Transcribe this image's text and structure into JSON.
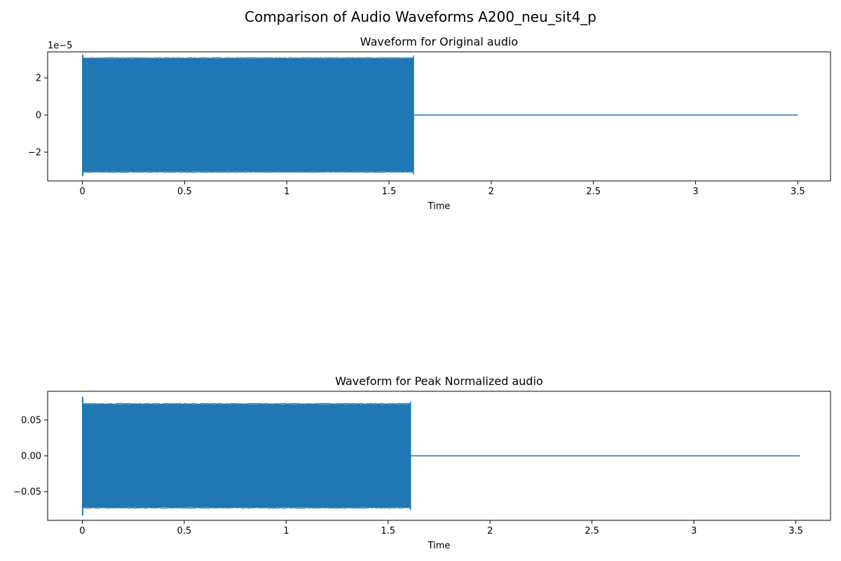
{
  "suptitle": "Comparison of Audio Waveforms A200_neu_sit4_p",
  "chart_data": [
    {
      "type": "line",
      "title": "Waveform for Original audio",
      "xlabel": "Time",
      "ylabel": "",
      "offset_text": "1e−5",
      "xlim": [
        -0.17,
        3.66
      ],
      "ylim": [
        -3.55,
        3.4
      ],
      "x_ticks": [
        0,
        0.5,
        1,
        1.5,
        2,
        2.5,
        3,
        3.5
      ],
      "x_tick_labels": [
        "0",
        "0.5",
        "1",
        "1.5",
        "2",
        "2.5",
        "3",
        "3.5"
      ],
      "y_ticks": [
        -2,
        0,
        2
      ],
      "y_tick_labels": [
        "−2",
        "0",
        "2"
      ],
      "series_color": "#1f77b4",
      "signal": {
        "start": 0.0,
        "active_end": 1.62,
        "end": 3.5,
        "envelope": 3.05,
        "peak_max": 3.25,
        "peak_min": -3.3,
        "silence_value": 0.0
      }
    },
    {
      "type": "line",
      "title": "Waveform for Peak Normalized audio",
      "xlabel": "Time",
      "ylabel": "",
      "offset_text": "",
      "xlim": [
        -0.17,
        3.67
      ],
      "ylim": [
        -0.09,
        0.09
      ],
      "x_ticks": [
        0,
        0.5,
        1,
        1.5,
        2,
        2.5,
        3,
        3.5
      ],
      "x_tick_labels": [
        "0",
        "0.5",
        "1",
        "1.5",
        "2",
        "2.5",
        "3",
        "3.5"
      ],
      "y_ticks": [
        -0.05,
        0.0,
        0.05
      ],
      "y_tick_labels": [
        "−0.05",
        "0.00",
        "0.05"
      ],
      "series_color": "#1f77b4",
      "signal": {
        "start": 0.0,
        "active_end": 1.61,
        "end": 3.52,
        "envelope": 0.072,
        "peak_max": 0.082,
        "peak_min": -0.083,
        "silence_value": 0.0
      }
    }
  ]
}
